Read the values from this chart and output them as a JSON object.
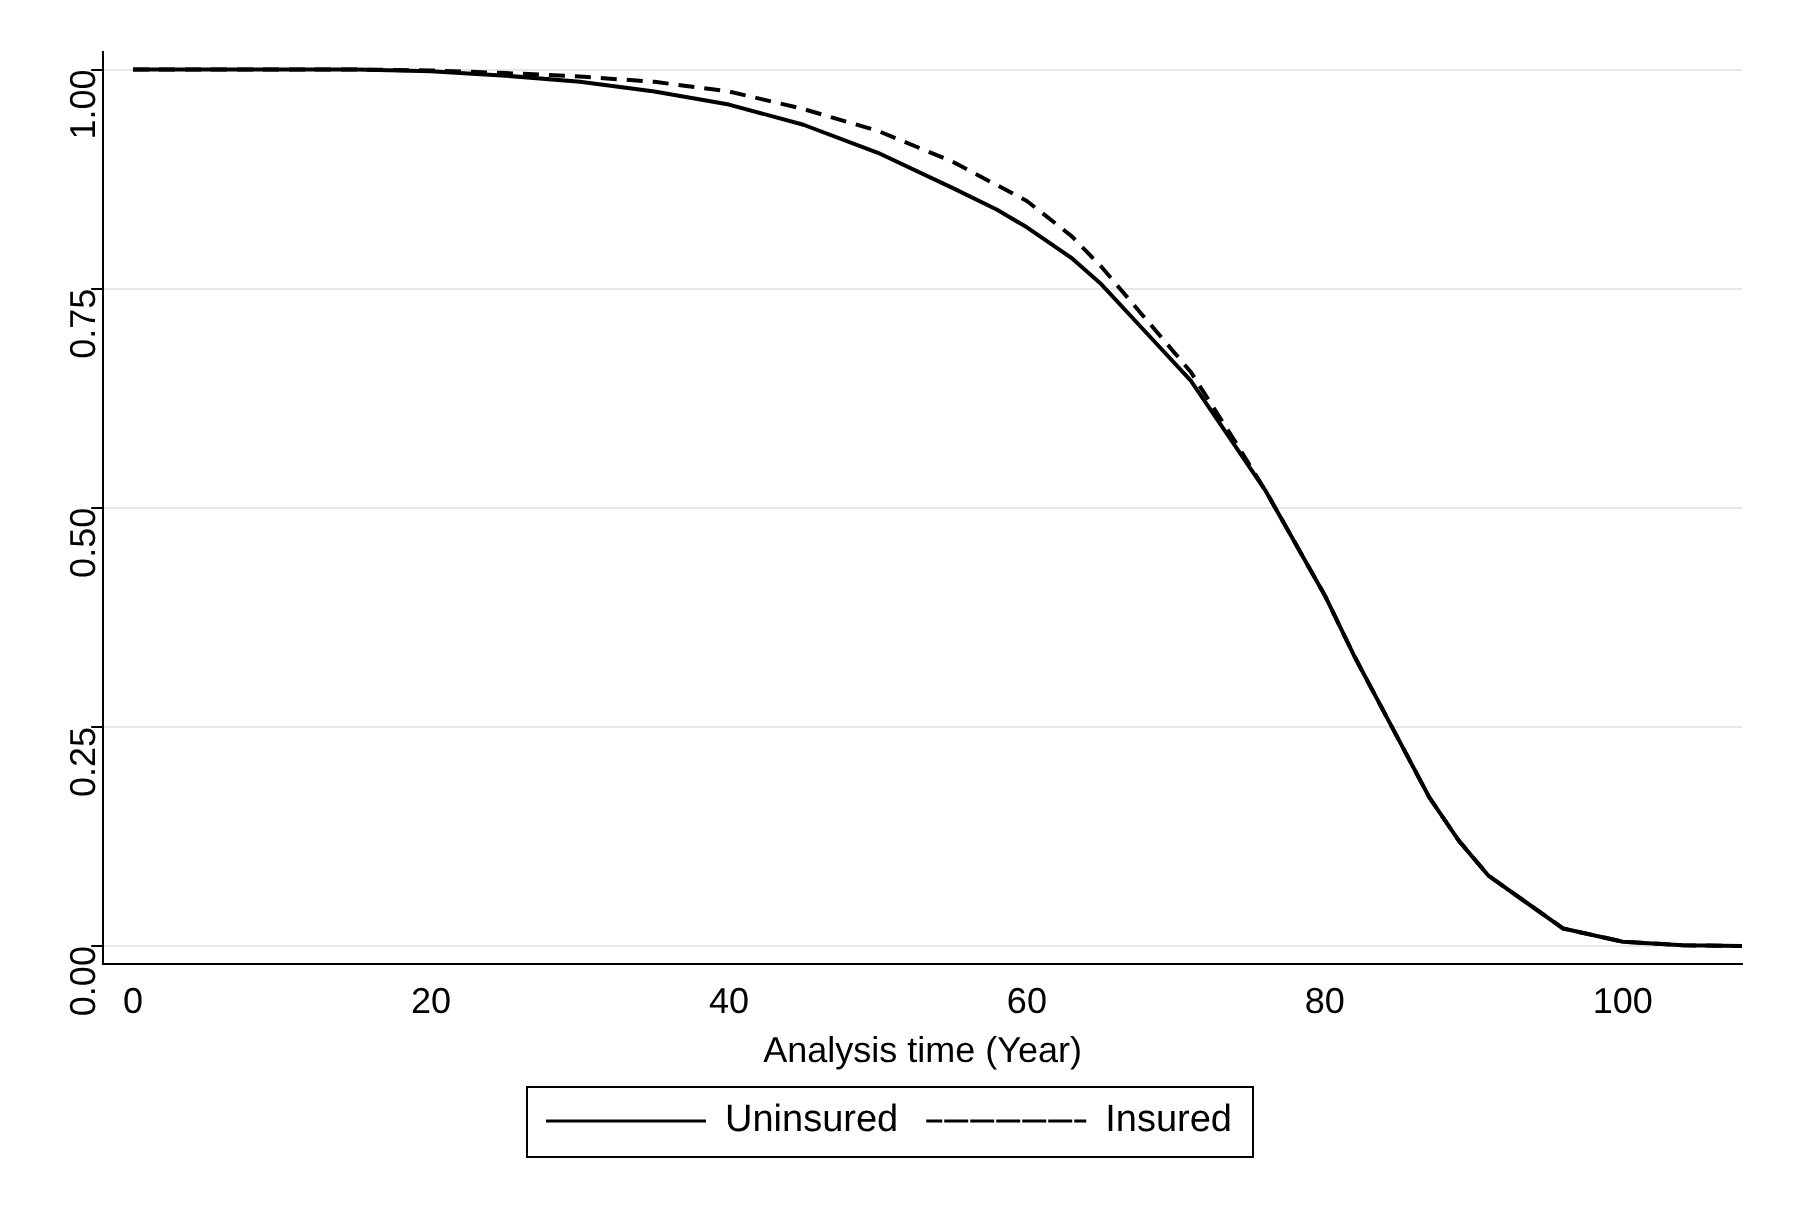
{
  "chart_data": {
    "type": "line",
    "xlabel": "Analysis time (Year)",
    "xlim": [
      -2,
      108
    ],
    "xticks": [
      0,
      20,
      40,
      60,
      80,
      100
    ],
    "ylim": [
      -0.02,
      1.02
    ],
    "yticks": [
      {
        "value": 0,
        "label": "0.00"
      },
      {
        "value": 0.25,
        "label": "0.25"
      },
      {
        "value": 0.5,
        "label": "0.50"
      },
      {
        "value": 0.75,
        "label": "0.75"
      },
      {
        "value": 1,
        "label": "1.00"
      }
    ],
    "grid": "y",
    "legend": "bottom",
    "marker": "none",
    "series": [
      {
        "name": "Uninsured",
        "color": "#000000",
        "line_style": "solid",
        "x": [
          0,
          15,
          20,
          25,
          30,
          35,
          40,
          45,
          50,
          55,
          58,
          60,
          63,
          65,
          68,
          71,
          74,
          76,
          77,
          80,
          82,
          84.5,
          87,
          89,
          91,
          93.5,
          96,
          100,
          104,
          108
        ],
        "values": [
          1,
          1,
          0.998,
          0.993,
          0.986,
          0.975,
          0.96,
          0.937,
          0.905,
          0.865,
          0.84,
          0.82,
          0.785,
          0.755,
          0.7,
          0.645,
          0.57,
          0.52,
          0.49,
          0.4,
          0.33,
          0.25,
          0.17,
          0.12,
          0.08,
          0.05,
          0.02,
          0.005,
          0.001,
          0
        ]
      },
      {
        "name": "Insured",
        "color": "#000000",
        "line_style": "dashed",
        "x": [
          0,
          15,
          20,
          25,
          30,
          35,
          40,
          45,
          50,
          55,
          58,
          60,
          63,
          65,
          68,
          71,
          74,
          76,
          77,
          80,
          82,
          84.5,
          87,
          89,
          91,
          93.5,
          96,
          100,
          104,
          108
        ],
        "values": [
          1,
          1,
          0.999,
          0.996,
          0.992,
          0.986,
          0.975,
          0.955,
          0.93,
          0.895,
          0.868,
          0.85,
          0.81,
          0.775,
          0.715,
          0.655,
          0.575,
          0.52,
          0.49,
          0.4,
          0.33,
          0.25,
          0.17,
          0.12,
          0.08,
          0.05,
          0.02,
          0.005,
          0.001,
          0
        ]
      }
    ]
  }
}
